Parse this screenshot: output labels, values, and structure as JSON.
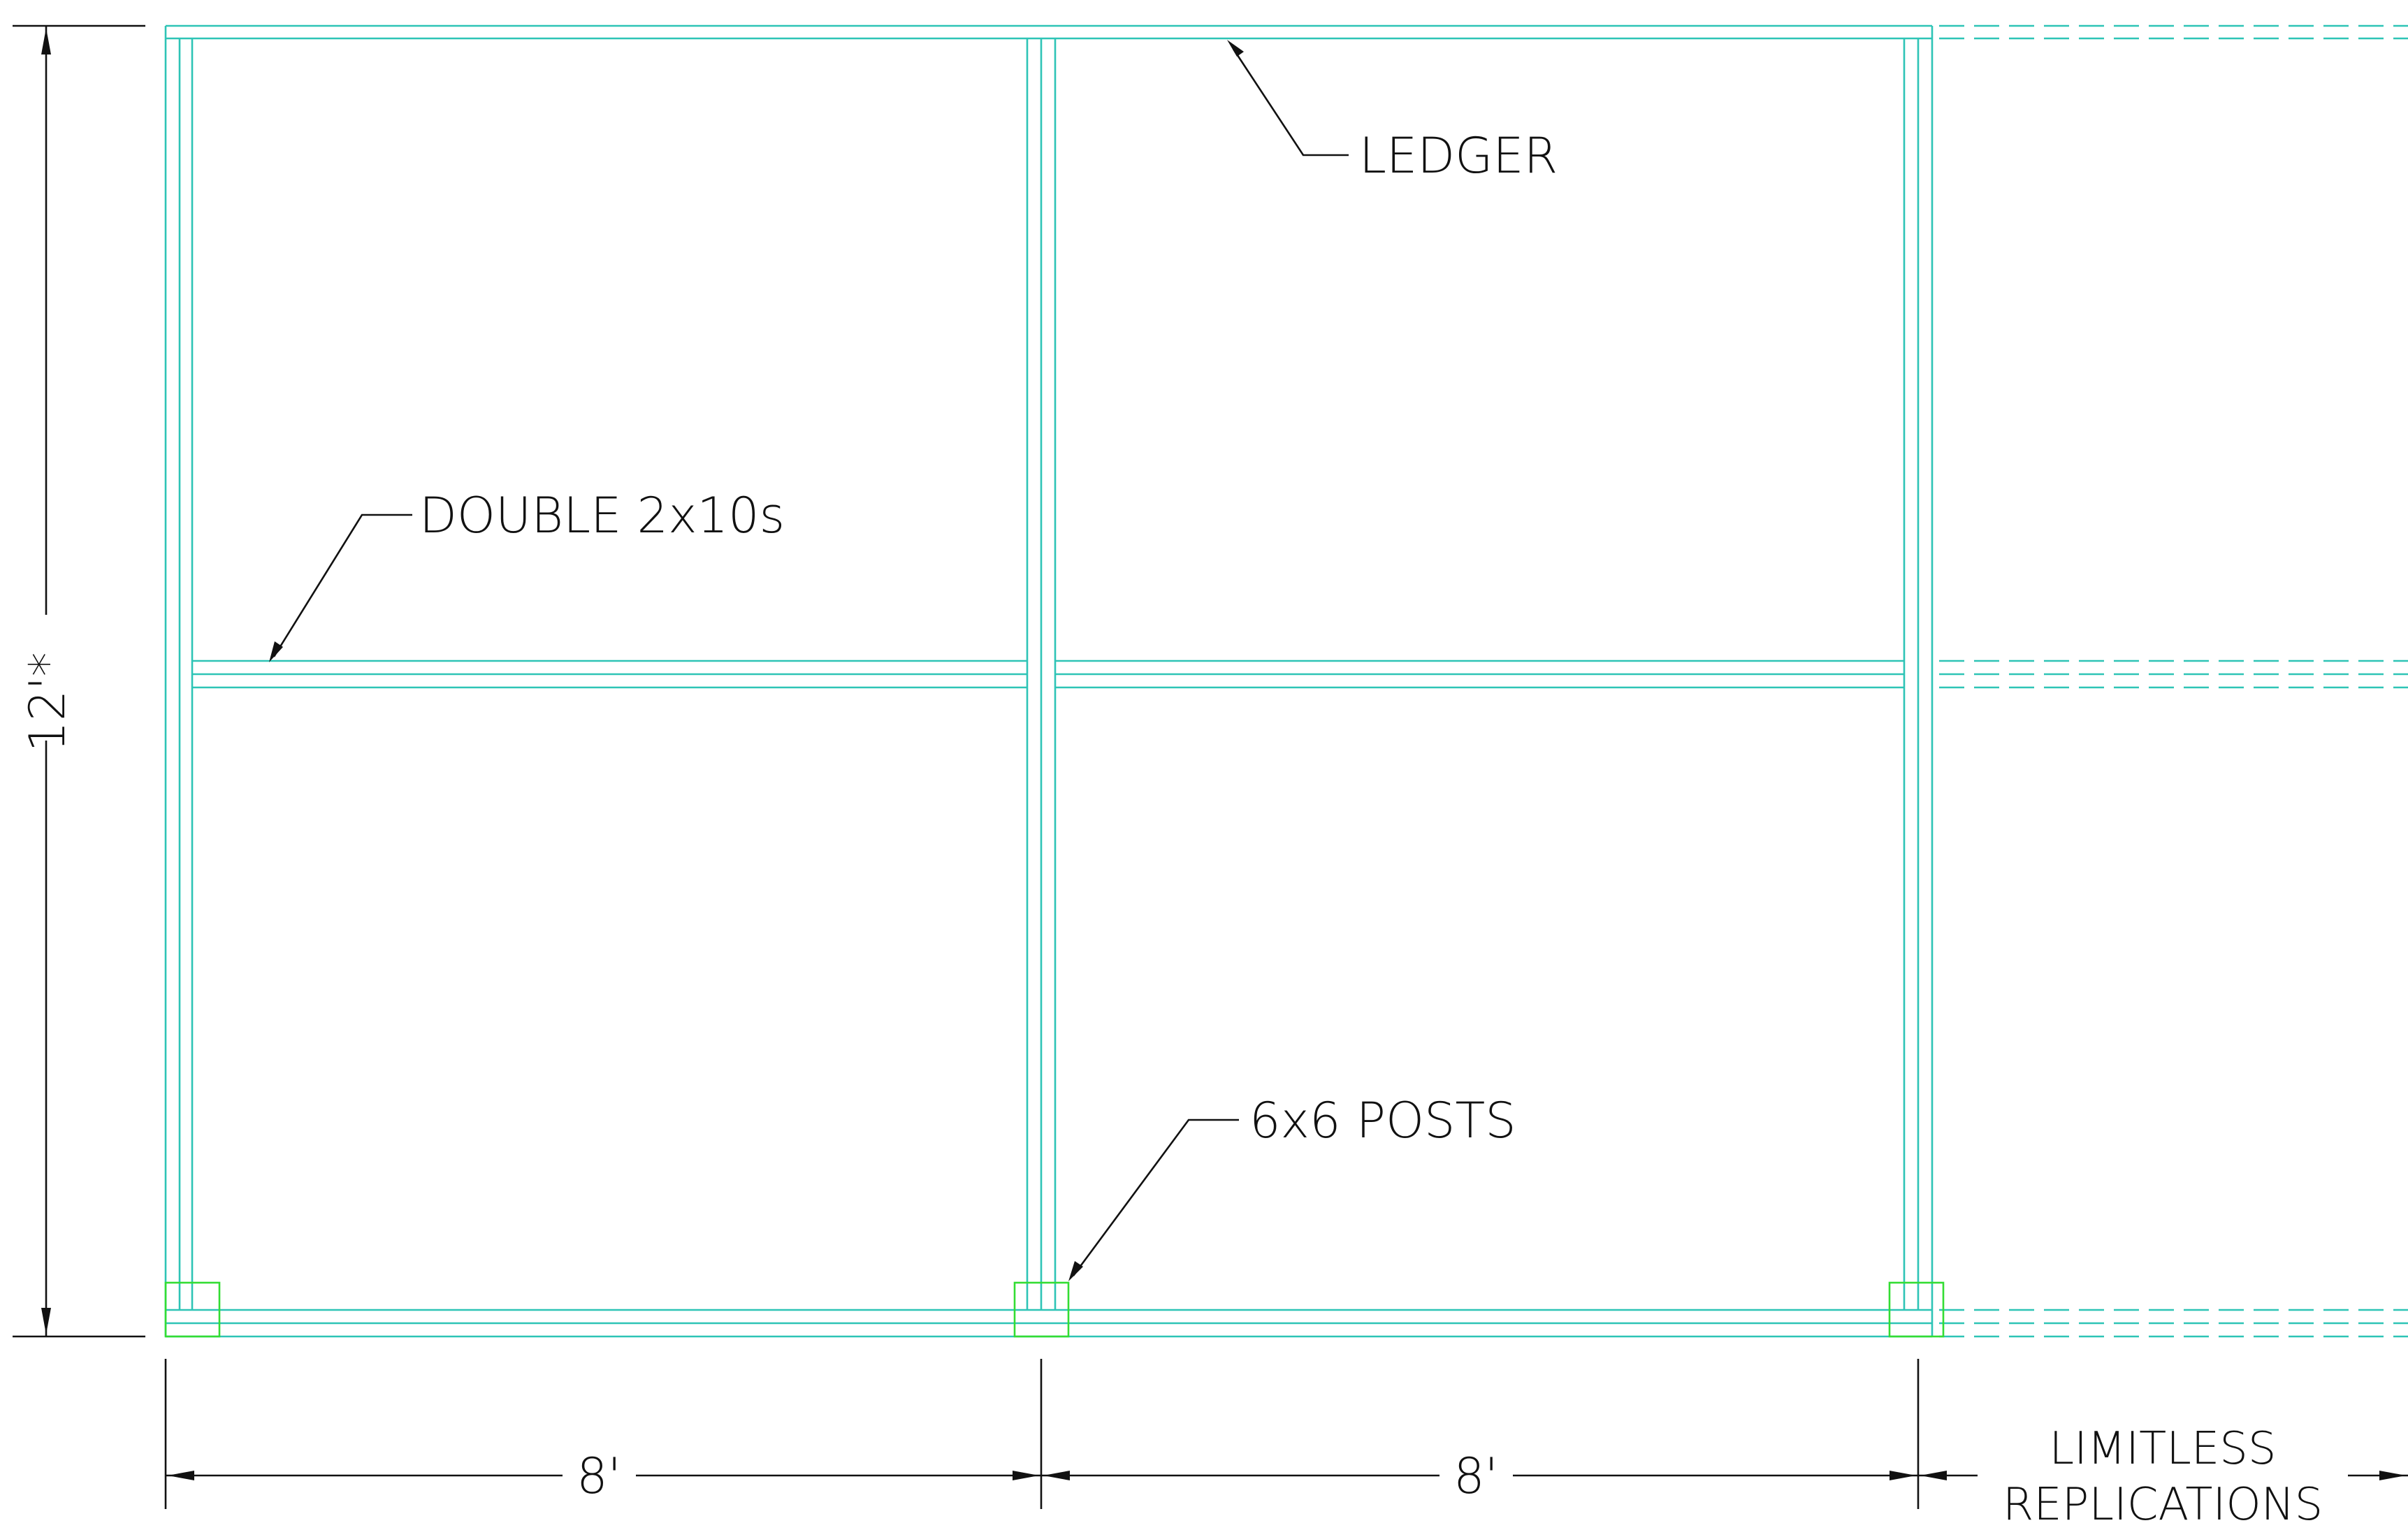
{
  "labels": {
    "ledger": "LEDGER",
    "beam": "DOUBLE 2x10s",
    "posts": "6x6 POSTS",
    "limitless_line1": "LIMITLESS",
    "limitless_line2": "REPLICATIONS"
  },
  "dimensions": {
    "height": "12'*",
    "span_left": "8'",
    "span_right": "8'"
  },
  "colors": {
    "framing": "#2ec4b6",
    "posts": "#33dd33",
    "annotation": "#111111"
  }
}
